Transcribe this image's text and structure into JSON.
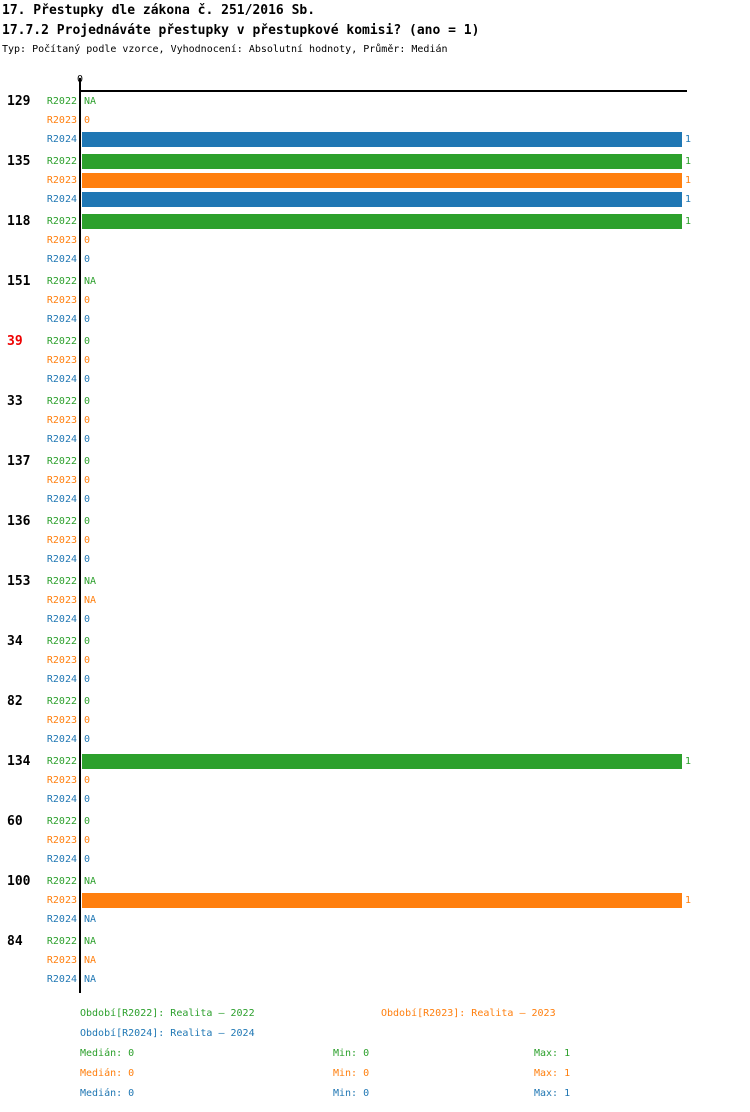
{
  "header": {
    "title": "17. Přestupky dle zákona č. 251/2016 Sb.",
    "subtitle": "17.7.2 Projednáváte přestupky v přestupkové komisi? (ano = 1)",
    "meta": "Typ: Počítaný podle vzorce, Vyhodnocení: Absolutní hodnoty, Průměr: Medián"
  },
  "chart_data": {
    "type": "bar",
    "orientation": "horizontal",
    "axis": {
      "tick": "0",
      "xlim": [
        0,
        1
      ],
      "grid": false
    },
    "default_label_color": "#000000",
    "stat_labels": {
      "median": "Medián",
      "min": "Min",
      "max": "Max"
    },
    "series": [
      {
        "key": "R2022",
        "label": "R2022",
        "color": "#2ca02c",
        "legend": "Období[R2022]: Realita – 2022",
        "stats": {
          "median": "0",
          "min": "0",
          "max": "1"
        }
      },
      {
        "key": "R2023",
        "label": "R2023",
        "color": "#ff7f0e",
        "legend": "Období[R2023]: Realita – 2023",
        "stats": {
          "median": "0",
          "min": "0",
          "max": "1"
        }
      },
      {
        "key": "R2024",
        "label": "R2024",
        "color": "#1f77b4",
        "legend": "Období[R2024]: Realita – 2024",
        "stats": {
          "median": "0",
          "min": "0",
          "max": "1"
        }
      }
    ],
    "groups": [
      {
        "label": "129",
        "values": {
          "R2022": "NA",
          "R2023": "0",
          "R2024": "1"
        }
      },
      {
        "label": "135",
        "values": {
          "R2022": "1",
          "R2023": "1",
          "R2024": "1"
        }
      },
      {
        "label": "118",
        "values": {
          "R2022": "1",
          "R2023": "0",
          "R2024": "0"
        }
      },
      {
        "label": "151",
        "values": {
          "R2022": "NA",
          "R2023": "0",
          "R2024": "0"
        }
      },
      {
        "label": "39",
        "label_color": "#ee0000",
        "values": {
          "R2022": "0",
          "R2023": "0",
          "R2024": "0"
        }
      },
      {
        "label": "33",
        "values": {
          "R2022": "0",
          "R2023": "0",
          "R2024": "0"
        }
      },
      {
        "label": "137",
        "values": {
          "R2022": "0",
          "R2023": "0",
          "R2024": "0"
        }
      },
      {
        "label": "136",
        "values": {
          "R2022": "0",
          "R2023": "0",
          "R2024": "0"
        }
      },
      {
        "label": "153",
        "values": {
          "R2022": "NA",
          "R2023": "NA",
          "R2024": "0"
        }
      },
      {
        "label": "34",
        "values": {
          "R2022": "0",
          "R2023": "0",
          "R2024": "0"
        }
      },
      {
        "label": "82",
        "values": {
          "R2022": "0",
          "R2023": "0",
          "R2024": "0"
        }
      },
      {
        "label": "134",
        "values": {
          "R2022": "1",
          "R2023": "0",
          "R2024": "0"
        }
      },
      {
        "label": "60",
        "values": {
          "R2022": "0",
          "R2023": "0",
          "R2024": "0"
        }
      },
      {
        "label": "100",
        "values": {
          "R2022": "NA",
          "R2023": "1",
          "R2024": "NA"
        }
      },
      {
        "label": "84",
        "values": {
          "R2022": "NA",
          "R2023": "NA",
          "R2024": "NA"
        }
      }
    ]
  }
}
